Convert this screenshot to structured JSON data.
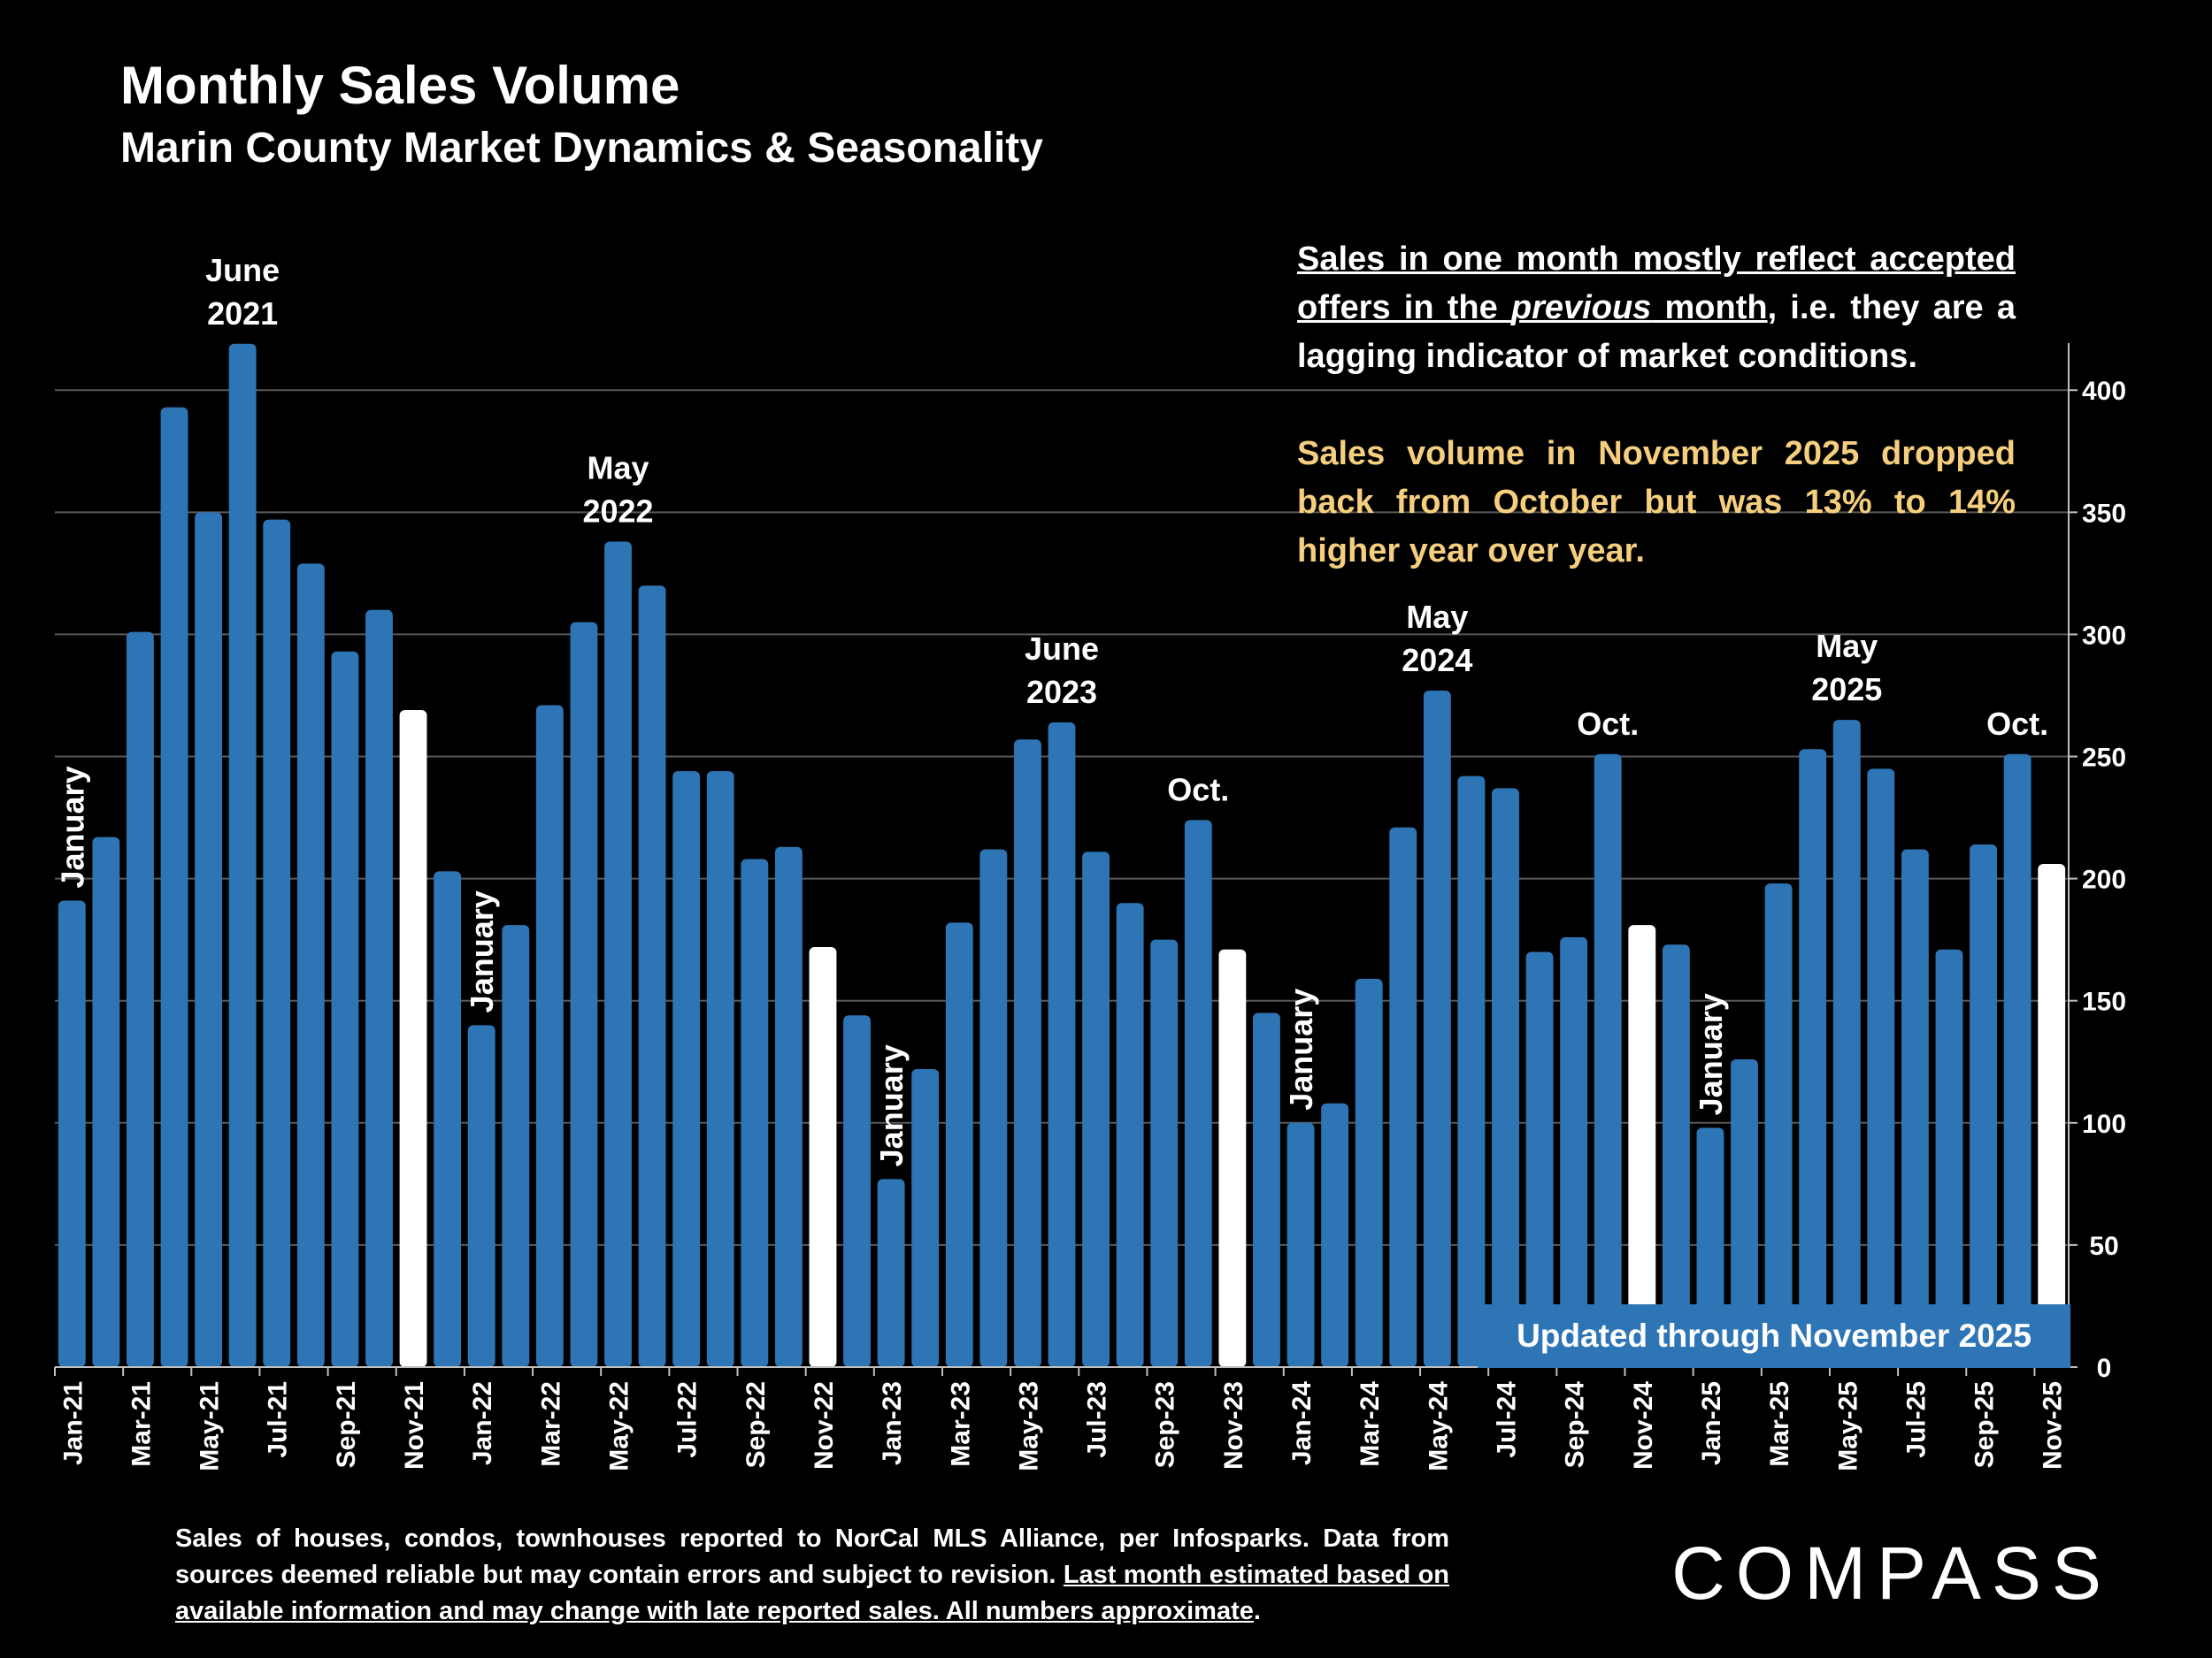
{
  "header": {
    "title": "Monthly Sales Volume",
    "subtitle": "Marin County Market Dynamics & Seasonality"
  },
  "note": {
    "line1_underlined_a": "Sales in one month mostly reflect accepted offers in the ",
    "line1_italic": "previous",
    "line1_underlined_b": " month",
    "line1_rest": ", i.e. they are a lagging indicator of market conditions.",
    "highlight": "Sales volume in November 2025 dropped back from October but was 13% to 14% higher year over year."
  },
  "footnote": {
    "plain": "Sales of houses, condos, townhouses reported to NorCal MLS Alliance, per Infosparks. Data from sources deemed reliable but may contain errors and subject to revision. ",
    "underlined": "Last month estimated based on available information and may change with late reported sales. All numbers approximate",
    "end": "."
  },
  "updated_badge": "Updated through November 2025",
  "logo_text": "COMPASS",
  "colors": {
    "background": "#000000",
    "bar": "#2e75b6",
    "highlight_bar": "#ffffff",
    "highlight_text": "#f6cf7e",
    "gridline": "#595959"
  },
  "chart_data": {
    "type": "bar",
    "ylim": [
      0,
      420
    ],
    "yticks": [
      0,
      50,
      100,
      150,
      200,
      250,
      300,
      350,
      400
    ],
    "y_axis_side": "right",
    "grid": true,
    "categories": [
      "Jan-21",
      "Feb-21",
      "Mar-21",
      "Apr-21",
      "May-21",
      "Jun-21",
      "Jul-21",
      "Aug-21",
      "Sep-21",
      "Oct-21",
      "Nov-21",
      "Dec-21",
      "Jan-22",
      "Feb-22",
      "Mar-22",
      "Apr-22",
      "May-22",
      "Jun-22",
      "Jul-22",
      "Aug-22",
      "Sep-22",
      "Oct-22",
      "Nov-22",
      "Dec-22",
      "Jan-23",
      "Feb-23",
      "Mar-23",
      "Apr-23",
      "May-23",
      "Jun-23",
      "Jul-23",
      "Aug-23",
      "Sep-23",
      "Oct-23",
      "Nov-23",
      "Dec-23",
      "Jan-24",
      "Feb-24",
      "Mar-24",
      "Apr-24",
      "May-24",
      "Jun-24",
      "Jul-24",
      "Aug-24",
      "Sep-24",
      "Oct-24",
      "Nov-24",
      "Dec-24",
      "Jan-25",
      "Feb-25",
      "Mar-25",
      "Apr-25",
      "May-25",
      "Jun-25",
      "Jul-25",
      "Aug-25",
      "Sep-25",
      "Oct-25",
      "Nov-25"
    ],
    "values": [
      191,
      217,
      301,
      393,
      350,
      419,
      347,
      329,
      293,
      310,
      269,
      203,
      140,
      181,
      271,
      305,
      338,
      320,
      244,
      244,
      208,
      213,
      172,
      144,
      77,
      122,
      182,
      212,
      257,
      264,
      211,
      190,
      175,
      224,
      171,
      145,
      100,
      108,
      159,
      221,
      277,
      242,
      237,
      170,
      176,
      251,
      181,
      173,
      98,
      126,
      198,
      253,
      265,
      245,
      212,
      171,
      214,
      251,
      206
    ],
    "highlighted_indices": [
      10,
      22,
      34,
      46,
      58
    ],
    "x_tick_labels": [
      "Jan-21",
      "Mar-21",
      "May-21",
      "Jul-21",
      "Sep-21",
      "Nov-21",
      "Jan-22",
      "Mar-22",
      "May-22",
      "Jul-22",
      "Sep-22",
      "Nov-22",
      "Jan-23",
      "Mar-23",
      "May-23",
      "Jul-23",
      "Sep-23",
      "Nov-23",
      "Jan-24",
      "Mar-24",
      "May-24",
      "Jul-24",
      "Sep-24",
      "Nov-24",
      "Jan-25",
      "Mar-25",
      "May-25",
      "Jul-25",
      "Sep-25",
      "Nov-25"
    ],
    "annotations": [
      {
        "index": 5,
        "lines": [
          "June",
          "2021"
        ],
        "style": "horizontal"
      },
      {
        "index": 16,
        "lines": [
          "May",
          "2022"
        ],
        "style": "horizontal"
      },
      {
        "index": 29,
        "lines": [
          "June",
          "2023"
        ],
        "style": "horizontal"
      },
      {
        "index": 33,
        "lines": [
          "Oct."
        ],
        "style": "horizontal"
      },
      {
        "index": 40,
        "lines": [
          "May",
          "2024"
        ],
        "style": "horizontal"
      },
      {
        "index": 45,
        "lines": [
          "Oct."
        ],
        "style": "horizontal"
      },
      {
        "index": 52,
        "lines": [
          "May",
          "2025"
        ],
        "style": "horizontal"
      },
      {
        "index": 57,
        "lines": [
          "Oct."
        ],
        "style": "horizontal"
      },
      {
        "index": 0,
        "lines": [
          "January"
        ],
        "style": "vertical"
      },
      {
        "index": 12,
        "lines": [
          "January"
        ],
        "style": "vertical"
      },
      {
        "index": 24,
        "lines": [
          "January"
        ],
        "style": "vertical"
      },
      {
        "index": 36,
        "lines": [
          "January"
        ],
        "style": "vertical"
      },
      {
        "index": 48,
        "lines": [
          "January"
        ],
        "style": "vertical"
      }
    ]
  }
}
